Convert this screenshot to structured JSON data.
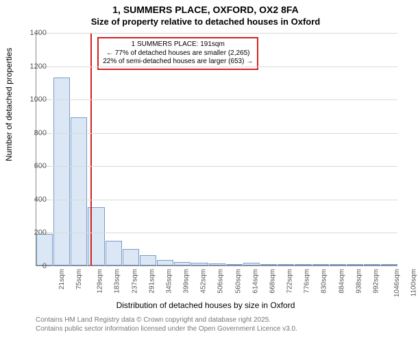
{
  "title": {
    "main": "1, SUMMERS PLACE, OXFORD, OX2 8FA",
    "sub": "Size of property relative to detached houses in Oxford",
    "fontsize_main": 14,
    "fontsize_sub": 13
  },
  "ylabel": "Number of detached properties",
  "xlabel": "Distribution of detached houses by size in Oxford",
  "chart": {
    "type": "histogram",
    "bar_fill": "#dbe7f5",
    "bar_stroke": "#7a9cc6",
    "grid_color": "#d9d9d9",
    "background_color": "#ffffff",
    "ylim": [
      0,
      1400
    ],
    "ytick_step": 200,
    "x_min": 21,
    "x_max": 1154,
    "x_bin_width": 54,
    "categories": [
      "21sqm",
      "75sqm",
      "129sqm",
      "183sqm",
      "237sqm",
      "291sqm",
      "345sqm",
      "399sqm",
      "452sqm",
      "506sqm",
      "560sqm",
      "614sqm",
      "668sqm",
      "722sqm",
      "776sqm",
      "830sqm",
      "884sqm",
      "938sqm",
      "992sqm",
      "1046sqm",
      "1100sqm"
    ],
    "values": [
      190,
      1130,
      890,
      350,
      150,
      100,
      60,
      35,
      20,
      18,
      12,
      5,
      18,
      3,
      3,
      2,
      2,
      2,
      2,
      1,
      1
    ],
    "marker": {
      "value_sqm": 191,
      "color": "#d22020"
    },
    "annotation": {
      "lines": [
        "1 SUMMERS PLACE: 191sqm",
        "← 77% of detached houses are smaller (2,265)",
        "22% of semi-detached houses are larger (653) →"
      ],
      "border_color": "#d22020"
    }
  },
  "footer": {
    "line1": "Contains HM Land Registry data © Crown copyright and database right 2025.",
    "line2": "Contains public sector information licensed under the Open Government Licence v3.0."
  }
}
